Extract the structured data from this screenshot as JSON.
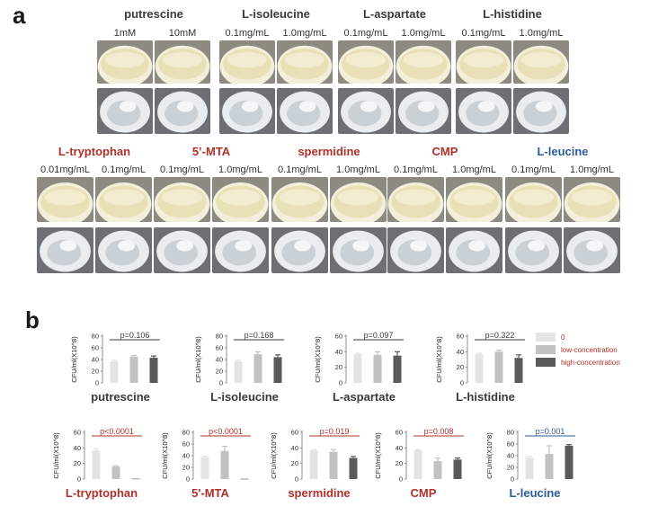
{
  "panel_a_letter": "a",
  "panel_b_letter": "b",
  "colors": {
    "black_label": "#3a3a3a",
    "red_label": "#b0302a",
    "blue_label": "#2c5a9a",
    "bar_zero": "#e4e4e4",
    "bar_low": "#c2c2c2",
    "bar_high": "#5a5a5a",
    "plate_dish": "#e8e0b6",
    "tube": "#cdd3d8"
  },
  "row1": [
    {
      "name": "putrescine",
      "color": "black",
      "concs": [
        "1mM",
        "10mM"
      ]
    },
    {
      "name": "L-isoleucine",
      "color": "black",
      "concs": [
        "0.1mg/mL",
        "1.0mg/mL"
      ]
    },
    {
      "name": "L-aspartate",
      "color": "black",
      "concs": [
        "0.1mg/mL",
        "1.0mg/mL"
      ]
    },
    {
      "name": "L-histidine",
      "color": "black",
      "concs": [
        "0.1mg/mL",
        "1.0mg/mL"
      ]
    }
  ],
  "row2": [
    {
      "name": "L-tryptophan",
      "color": "red",
      "concs": [
        "0.01mg/mL",
        "0.1mg/mL"
      ]
    },
    {
      "name": "5’-MTA",
      "color": "red",
      "concs": [
        "0.1mg/mL",
        "1.0mg/mL"
      ]
    },
    {
      "name": "spermidine",
      "color": "red",
      "concs": [
        "0.1mg/mL",
        "1.0mg/mL"
      ]
    },
    {
      "name": "CMP",
      "color": "red",
      "concs": [
        "0.1mg/mL",
        "1.0mg/mL"
      ]
    },
    {
      "name": "L-leucine",
      "color": "blue",
      "concs": [
        "0.1mg/mL",
        "1.0mg/mL"
      ]
    }
  ],
  "legend": [
    {
      "label": "0",
      "color": "#e4e4e4",
      "text_color": "#b0302a"
    },
    {
      "label": "low-concentration",
      "color": "#c2c2c2",
      "text_color": "#b0302a"
    },
    {
      "label": "high-concentration",
      "color": "#5a5a5a",
      "text_color": "#b0302a"
    }
  ],
  "chart_data": [
    {
      "type": "bar",
      "title": "putrescine",
      "title_color": "black",
      "ylabel": "CFU/ml(X10^8)",
      "ylim": [
        0,
        80
      ],
      "yticks": [
        0,
        20,
        40,
        60,
        80
      ],
      "categories": [
        "0",
        "low-concentration",
        "high-concentration"
      ],
      "values": [
        37,
        45,
        43
      ],
      "errors": [
        2,
        2,
        3
      ],
      "p_label": "p=0.106",
      "p_color": "black"
    },
    {
      "type": "bar",
      "title": "L-isoleucine",
      "title_color": "black",
      "ylabel": "CFU/ml(X10^8)",
      "ylim": [
        0,
        80
      ],
      "yticks": [
        0,
        20,
        40,
        60,
        80
      ],
      "categories": [
        "0",
        "low-concentration",
        "high-concentration"
      ],
      "values": [
        37,
        49,
        44
      ],
      "errors": [
        2,
        4,
        4
      ],
      "p_label": "p=0.168",
      "p_color": "black"
    },
    {
      "type": "bar",
      "title": "L-aspartate",
      "title_color": "black",
      "ylabel": "CFU/ml(X10^8)",
      "ylim": [
        0,
        60
      ],
      "yticks": [
        0,
        20,
        40,
        60
      ],
      "categories": [
        "0",
        "low-concentration",
        "high-concentration"
      ],
      "values": [
        37,
        36,
        35
      ],
      "errors": [
        1,
        4,
        5
      ],
      "p_label": "p=0.097",
      "p_color": "black"
    },
    {
      "type": "bar",
      "title": "L-histidine",
      "title_color": "black",
      "ylabel": "CFU/ml(X10^8)",
      "ylim": [
        0,
        60
      ],
      "yticks": [
        0,
        20,
        40,
        60
      ],
      "categories": [
        "0",
        "low-concentration",
        "high-concentration"
      ],
      "values": [
        37,
        40,
        32
      ],
      "errors": [
        1,
        2,
        4
      ],
      "p_label": "p=0.322",
      "p_color": "black"
    },
    {
      "type": "bar",
      "title": "L-tryptophan",
      "title_color": "red",
      "ylabel": "CFU/ml(X10^8)",
      "ylim": [
        0,
        60
      ],
      "yticks": [
        0,
        20,
        40,
        60
      ],
      "categories": [
        "0",
        "low-concentration",
        "high-concentration"
      ],
      "values": [
        37,
        16,
        0.5
      ],
      "errors": [
        2,
        1,
        0
      ],
      "p_label": "p<0.0001",
      "p_color": "red"
    },
    {
      "type": "bar",
      "title": "5'-MTA",
      "title_color": "red",
      "ylabel": "CFU/ml(X10^8)",
      "ylim": [
        0,
        80
      ],
      "yticks": [
        0,
        20,
        40,
        60,
        80
      ],
      "categories": [
        "0",
        "low-concentration",
        "high-concentration"
      ],
      "values": [
        37,
        48,
        0.5
      ],
      "errors": [
        2,
        8,
        0
      ],
      "p_label": "p<0.0001",
      "p_color": "red"
    },
    {
      "type": "bar",
      "title": "spermidine",
      "title_color": "red",
      "ylabel": "CFU/ml(X10^8)",
      "ylim": [
        0,
        60
      ],
      "yticks": [
        0,
        20,
        40,
        60
      ],
      "categories": [
        "0",
        "low-concentration",
        "high-concentration"
      ],
      "values": [
        37,
        35,
        27
      ],
      "errors": [
        1,
        3,
        2
      ],
      "p_label": "p=0.019",
      "p_color": "red"
    },
    {
      "type": "bar",
      "title": "CMP",
      "title_color": "red",
      "ylabel": "CFU/ml(X10^8)",
      "ylim": [
        0,
        60
      ],
      "yticks": [
        0,
        20,
        40,
        60
      ],
      "categories": [
        "0",
        "low-concentration",
        "high-concentration"
      ],
      "values": [
        37,
        23,
        25
      ],
      "errors": [
        1,
        4,
        2
      ],
      "p_label": "p=0.008",
      "p_color": "red"
    },
    {
      "type": "bar",
      "title": "L-leucine",
      "title_color": "blue",
      "ylabel": "CFU/ml(X10^8)",
      "ylim": [
        0,
        80
      ],
      "yticks": [
        0,
        20,
        40,
        60,
        80
      ],
      "categories": [
        "0",
        "low-concentration",
        "high-concentration"
      ],
      "values": [
        37,
        43,
        57
      ],
      "errors": [
        2,
        14,
        2
      ],
      "p_label": "p=0.001",
      "p_color": "blue"
    }
  ]
}
